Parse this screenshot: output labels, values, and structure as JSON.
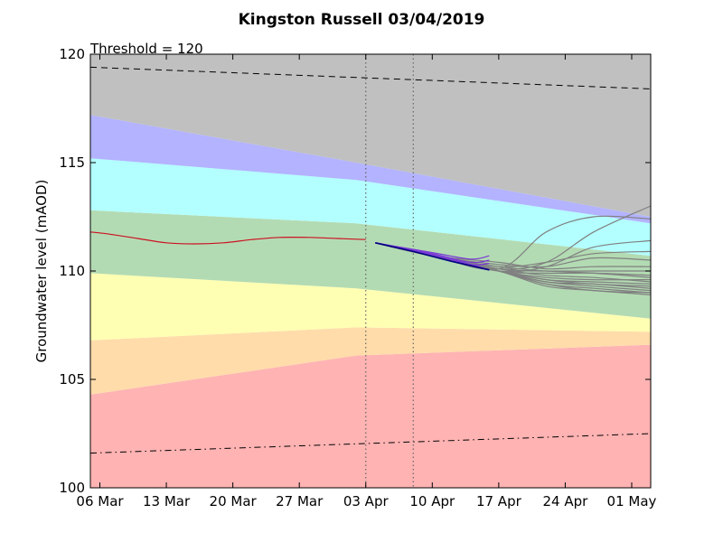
{
  "chart_data": {
    "type": "line",
    "title": "Kingston Russell 03/04/2019",
    "ylabel": "Groundwater level (mAOD)",
    "xlabel": "",
    "annotation": "Threshold = 120",
    "ylim": [
      100,
      120
    ],
    "xlim": [
      "2019-03-05",
      "2019-05-03"
    ],
    "x_tick_labels": [
      {
        "date": "2019-03-06",
        "label": "06 Mar"
      },
      {
        "date": "2019-03-13",
        "label": "13 Mar"
      },
      {
        "date": "2019-03-20",
        "label": "20 Mar"
      },
      {
        "date": "2019-03-27",
        "label": "27 Mar"
      },
      {
        "date": "2019-04-03",
        "label": "03 Apr"
      },
      {
        "date": "2019-04-10",
        "label": "10 Apr"
      },
      {
        "date": "2019-04-17",
        "label": "17 Apr"
      },
      {
        "date": "2019-04-24",
        "label": "24 Apr"
      },
      {
        "date": "2019-05-01",
        "label": "01 May"
      }
    ],
    "y_ticks": [
      100,
      105,
      110,
      115,
      120
    ],
    "grid": false,
    "bands": {
      "dates": [
        "2019-03-05",
        "2019-04-02",
        "2019-05-03"
      ],
      "colors": [
        "#ffb3b3",
        "#ffdcaa",
        "#ffffb3",
        "#b3dbb3",
        "#b3ffff",
        "#b3b3ff",
        "#c0c0c0"
      ],
      "boundaries": [
        [
          104.3,
          106.1,
          106.6
        ],
        [
          106.8,
          107.4,
          107.2
        ],
        [
          109.9,
          109.2,
          107.8
        ],
        [
          112.8,
          112.2,
          110.7
        ],
        [
          115.2,
          114.2,
          112.2
        ],
        [
          117.2,
          115.0,
          112.5
        ]
      ]
    },
    "reference_lines": [
      {
        "style": "dashed",
        "dates": [
          "2019-03-05",
          "2019-05-03"
        ],
        "values": [
          119.4,
          118.4
        ]
      },
      {
        "style": "dashdot",
        "dates": [
          "2019-03-05",
          "2019-05-03"
        ],
        "values": [
          101.6,
          102.5
        ]
      }
    ],
    "vertical_lines": [
      "2019-04-03",
      "2019-04-08"
    ],
    "observed": {
      "color": "#cc1122",
      "dates": [
        "2019-03-05",
        "2019-03-07",
        "2019-03-10",
        "2019-03-13",
        "2019-03-16",
        "2019-03-19",
        "2019-03-22",
        "2019-03-25",
        "2019-03-28",
        "2019-03-31",
        "2019-04-03"
      ],
      "values": [
        111.8,
        111.7,
        111.5,
        111.3,
        111.25,
        111.3,
        111.45,
        111.55,
        111.55,
        111.5,
        111.45
      ]
    },
    "forecast_mean": {
      "color": "#7a3bd6",
      "dates": [
        "2019-04-04",
        "2019-04-08",
        "2019-04-12",
        "2019-04-16"
      ],
      "values": [
        111.3,
        110.95,
        110.55,
        110.05
      ]
    },
    "forecast_short": {
      "color": "#000080",
      "dates": [
        "2019-04-04",
        "2019-04-08",
        "2019-04-12",
        "2019-04-16"
      ],
      "values": [
        111.3,
        110.9,
        110.45,
        110.05
      ]
    },
    "purple_members": [
      {
        "dates": [
          "2019-04-04",
          "2019-04-10",
          "2019-04-14",
          "2019-04-16"
        ],
        "values": [
          111.3,
          110.85,
          110.55,
          110.7
        ]
      },
      {
        "dates": [
          "2019-04-04",
          "2019-04-10",
          "2019-04-14",
          "2019-04-16"
        ],
        "values": [
          111.3,
          110.8,
          110.4,
          110.5
        ]
      },
      {
        "dates": [
          "2019-04-04",
          "2019-04-10",
          "2019-04-14",
          "2019-04-16"
        ],
        "values": [
          111.3,
          110.75,
          110.3,
          110.35
        ]
      }
    ],
    "ensemble": {
      "color": "#808080",
      "dates": [
        "2019-04-04",
        "2019-04-10",
        "2019-04-17",
        "2019-04-22",
        "2019-04-27",
        "2019-05-03"
      ],
      "members": [
        [
          111.3,
          110.7,
          110.1,
          111.8,
          112.5,
          112.4
        ],
        [
          111.3,
          110.7,
          110.1,
          110.4,
          111.8,
          113.0
        ],
        [
          111.3,
          110.7,
          110.0,
          110.2,
          111.1,
          111.4
        ],
        [
          111.3,
          110.7,
          110.2,
          110.4,
          110.8,
          110.9
        ],
        [
          111.3,
          110.7,
          110.3,
          110.2,
          110.6,
          110.5
        ],
        [
          111.3,
          110.7,
          110.4,
          110.1,
          110.2,
          110.2
        ],
        [
          111.3,
          110.7,
          110.1,
          110.0,
          110.0,
          110.0
        ],
        [
          111.3,
          110.7,
          110.0,
          109.9,
          109.9,
          109.8
        ],
        [
          111.3,
          110.7,
          110.0,
          109.7,
          109.6,
          109.6
        ],
        [
          111.3,
          110.7,
          110.0,
          109.6,
          109.5,
          109.4
        ],
        [
          111.3,
          110.7,
          110.0,
          109.5,
          109.4,
          109.2
        ],
        [
          111.3,
          110.7,
          110.0,
          109.4,
          109.2,
          109.0
        ],
        [
          111.3,
          110.7,
          110.0,
          109.3,
          109.1,
          108.9
        ],
        [
          111.3,
          110.7,
          110.0,
          109.5,
          109.3,
          109.1
        ],
        [
          111.3,
          110.7,
          110.1,
          109.8,
          109.7,
          109.5
        ],
        [
          111.3,
          110.7,
          110.2,
          110.0,
          109.9,
          109.7
        ],
        [
          111.3,
          110.7,
          110.0,
          109.6,
          109.4,
          109.3
        ],
        [
          111.3,
          110.7,
          110.0,
          109.4,
          109.1,
          109.0
        ]
      ]
    }
  }
}
